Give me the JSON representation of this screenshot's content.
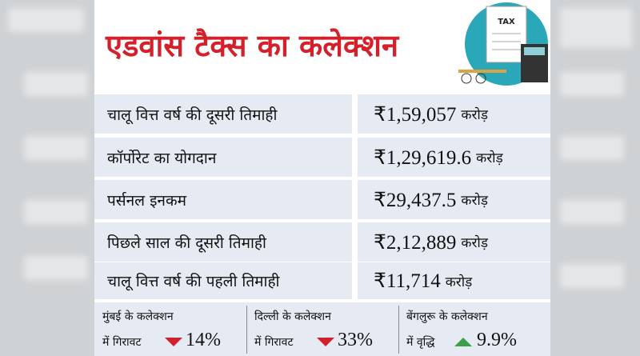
{
  "header": {
    "title": "एडवांस टैक्स का कलेक्शन"
  },
  "table": {
    "rows": [
      [
        "चालू वित्त वर्ष की दूसरी तिमाही",
        "₹1,59,057",
        "करोड़"
      ],
      [
        "कॉर्पोरेट का योगदान",
        "₹1,29,619.6",
        "करोड़"
      ],
      [
        "पर्सनल इनकम",
        "₹29,437.5",
        "करोड़"
      ],
      [
        "पिछले साल की दूसरी तिमाही",
        "₹2,12,889",
        "करोड़"
      ],
      [
        "चालू वित्त वर्ष की पहली तिमाही",
        "₹11,714",
        "करोड़"
      ]
    ]
  },
  "footer": {
    "items": [
      {
        "line1": "मुंबई के कलेक्शन",
        "line2": "में गिरावट",
        "change": "14%",
        "direction": "down"
      },
      {
        "line1": "दिल्ली के कलेक्शन",
        "line2": "में गिरावट",
        "change": "33%",
        "direction": "down"
      },
      {
        "line1": "बेंगलुरू के कलेक्शन",
        "line2": "में वृद्धि",
        "change": "9.9%",
        "direction": "up"
      }
    ]
  },
  "icon": {
    "label": "TAX"
  }
}
